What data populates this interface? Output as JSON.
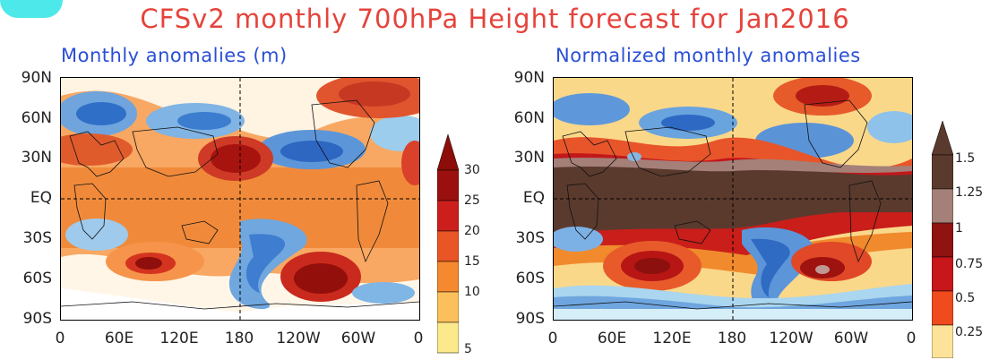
{
  "title": "CFSv2 monthly 700hPa Height forecast for Jan2016",
  "left_panel": {
    "title": "Monthly anomalies (m)",
    "colorbar": [
      "5",
      "10",
      "15",
      "20",
      "25",
      "30"
    ],
    "colors": [
      "#fbe98c",
      "#fbc05c",
      "#f6882f",
      "#ea5525",
      "#cc1f1b",
      "#9a100e"
    ]
  },
  "right_panel": {
    "title": "Normalized monthly anomalies",
    "colorbar": [
      "0.25",
      "0.5",
      "0.75",
      "1",
      "1.25",
      "1.5"
    ],
    "colors": [
      "#fde39a",
      "#f7a21e",
      "#ef4b1c",
      "#c7171a",
      "#8f1411",
      "#a48079",
      "#5b3a2e"
    ]
  },
  "lat_labels": [
    "90N",
    "60N",
    "30N",
    "EQ",
    "30S",
    "60S",
    "90S"
  ],
  "lon_labels": [
    "0",
    "60E",
    "120E",
    "180",
    "120W",
    "60W",
    "0"
  ],
  "chart_data": [
    {
      "type": "heatmap",
      "title": "Monthly anomalies (m)",
      "variable": "700hPa Height anomaly",
      "units": "m",
      "colorbar_levels": [
        5,
        10,
        15,
        20,
        25,
        30
      ],
      "lat_range": [
        -90,
        90
      ],
      "lon_range": [
        0,
        360
      ]
    },
    {
      "type": "heatmap",
      "title": "Normalized monthly anomalies",
      "variable": "700hPa Height normalized anomaly",
      "colorbar_levels": [
        0.25,
        0.5,
        0.75,
        1,
        1.25,
        1.5
      ],
      "lat_range": [
        -90,
        90
      ],
      "lon_range": [
        0,
        360
      ]
    }
  ]
}
